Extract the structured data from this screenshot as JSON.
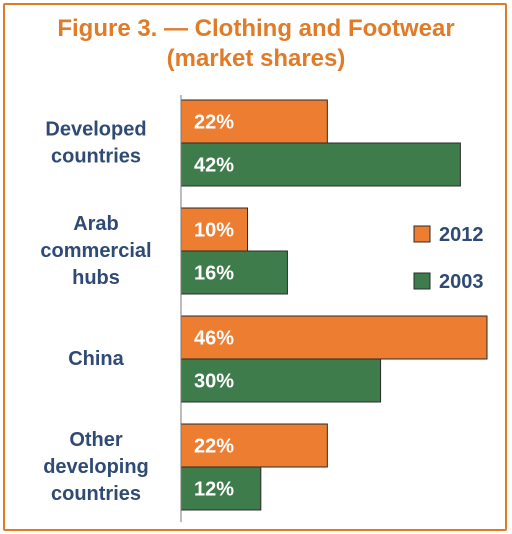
{
  "title": {
    "line1": "Figure 3. —  Clothing and Footwear",
    "line2": "(market shares)"
  },
  "colors": {
    "accent": "#e07b28",
    "series_2012": "#ed7d31",
    "series_2003": "#3f7c4c",
    "label_text": "#2f4a74"
  },
  "chart_data": {
    "type": "bar",
    "orientation": "horizontal",
    "categories": [
      [
        "Developed",
        "countries"
      ],
      [
        "Arab",
        "commercial",
        "hubs"
      ],
      [
        "China"
      ],
      [
        "Other",
        "developing",
        "countries"
      ]
    ],
    "series": [
      {
        "name": "2012",
        "values": [
          22,
          10,
          46,
          22
        ],
        "labels": [
          "22%",
          "10%",
          "46%",
          "22%"
        ]
      },
      {
        "name": "2003",
        "values": [
          42,
          16,
          30,
          12
        ],
        "labels": [
          "42%",
          "16%",
          "30%",
          "12%"
        ]
      }
    ],
    "unit": "%",
    "xlim": [
      0,
      46
    ],
    "grid": false,
    "legend": "right"
  }
}
